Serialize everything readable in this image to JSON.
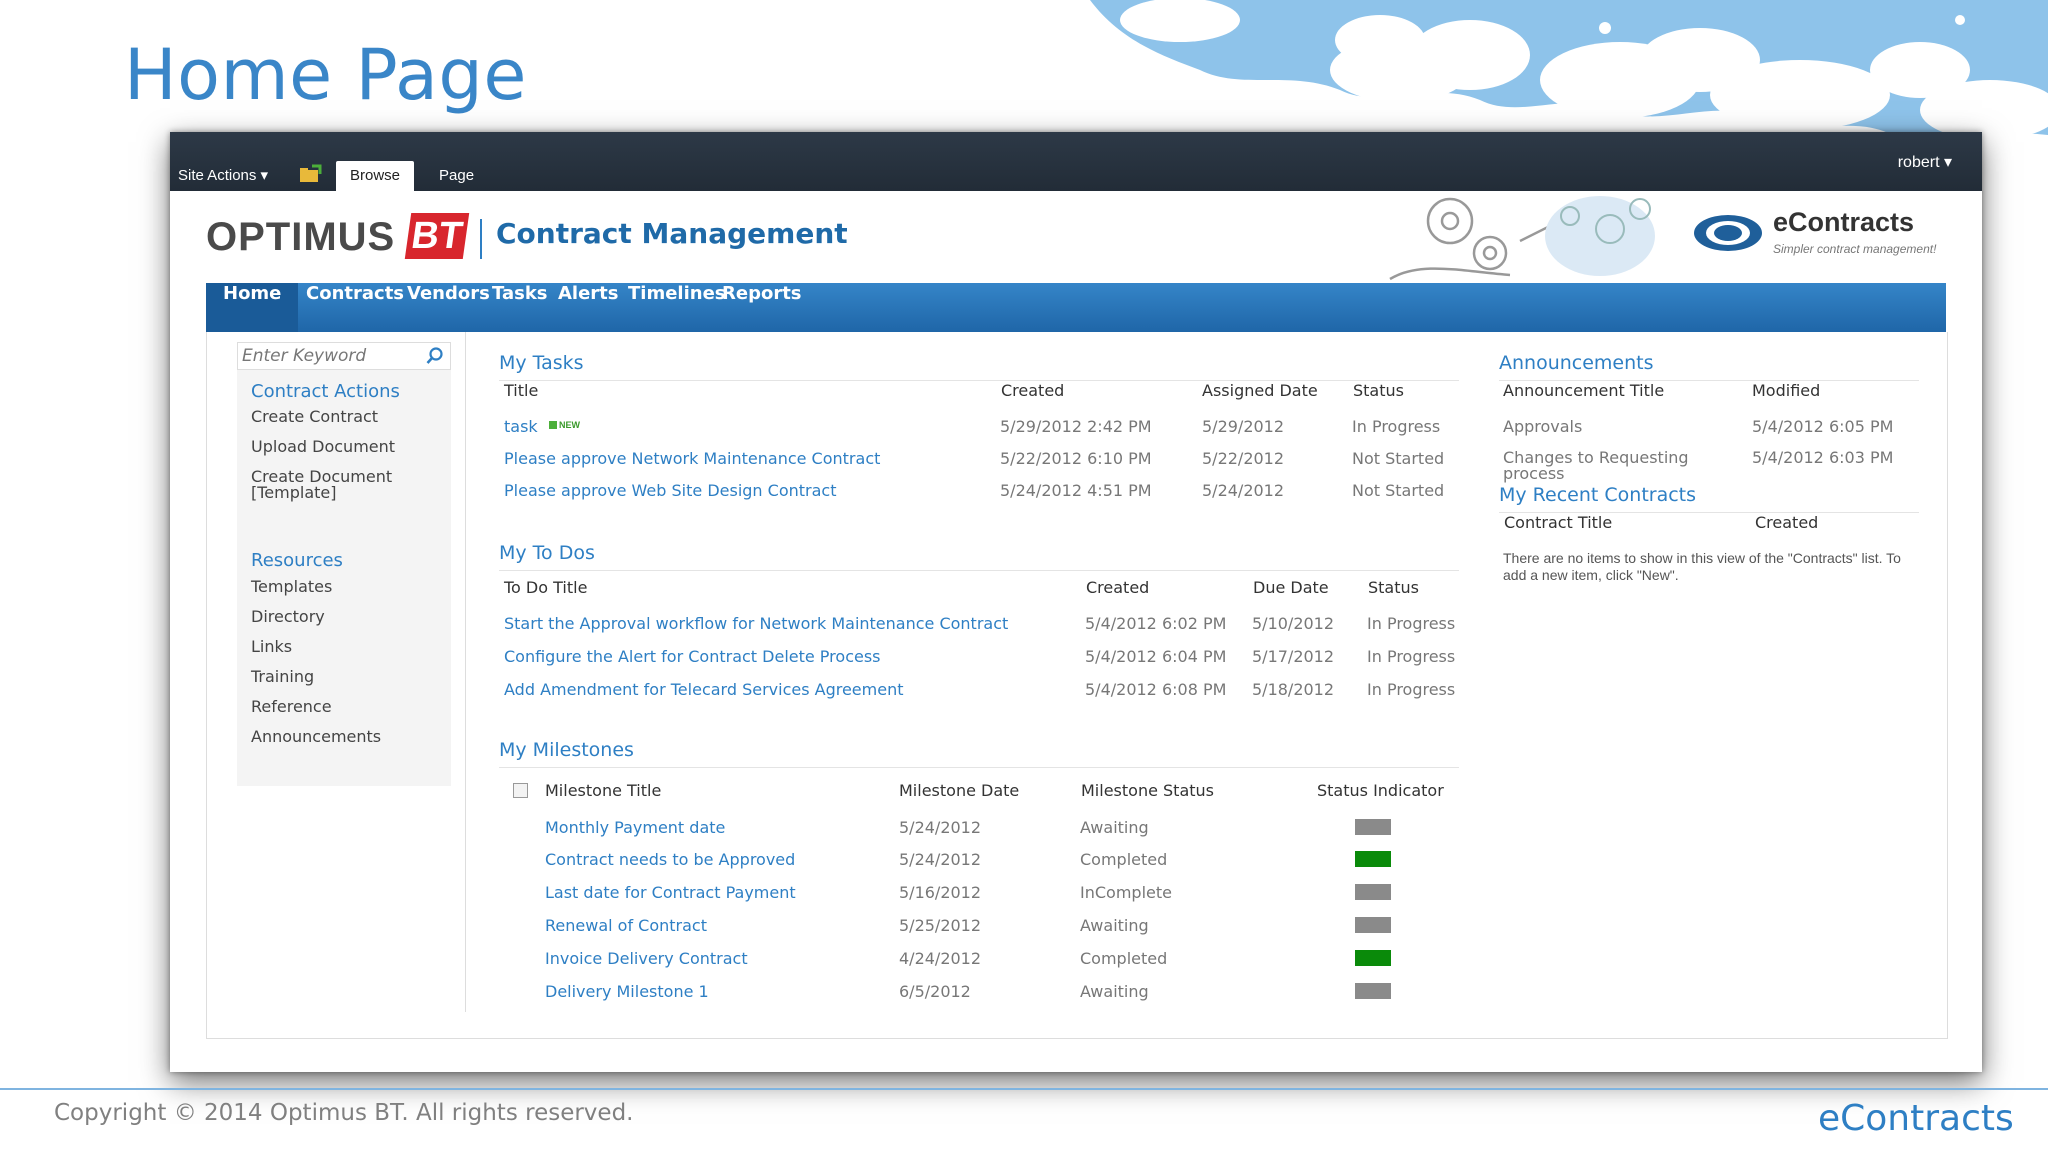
{
  "slide": {
    "title": "Home Page",
    "copyright": "Copyright © 2014 Optimus BT. All rights reserved.",
    "footer_logo": "eContracts"
  },
  "ribbon": {
    "site_actions": "Site Actions ▾",
    "tabs": [
      "Browse",
      "Page"
    ],
    "user": "robert ▾"
  },
  "brand": {
    "optimus": "OPTIMUS",
    "bt": "BT",
    "site_name": "Contract Management",
    "econtracts": "eContracts",
    "tagline": "Simpler contract management!"
  },
  "topnav": [
    "Home",
    "Contracts",
    "Vendors",
    "Tasks",
    "Alerts",
    "Timelines",
    "Reports"
  ],
  "leftnav": {
    "search_placeholder": "Enter Keyword",
    "contract_actions": {
      "heading": "Contract Actions",
      "items": [
        "Create Contract",
        "Upload Document",
        "Create Document",
        "[Template]"
      ]
    },
    "resources": {
      "heading": "Resources",
      "items": [
        "Templates",
        "Directory",
        "Links",
        "Training",
        "Reference",
        "Announcements"
      ]
    }
  },
  "my_tasks": {
    "title": "My Tasks",
    "headers": [
      "Title",
      "Created",
      "Assigned Date",
      "Status"
    ],
    "new_badge": "NEW",
    "rows": [
      {
        "title": "task",
        "created": "5/29/2012 2:42 PM",
        "assigned": "5/29/2012",
        "status": "In Progress"
      },
      {
        "title": "Please approve Network Maintenance Contract",
        "created": "5/22/2012 6:10 PM",
        "assigned": "5/22/2012",
        "status": "Not Started"
      },
      {
        "title": "Please approve Web Site Design Contract",
        "created": "5/24/2012 4:51 PM",
        "assigned": "5/24/2012",
        "status": "Not Started"
      }
    ]
  },
  "my_todos": {
    "title": "My To Dos",
    "headers": [
      "To Do Title",
      "Created",
      "Due Date",
      "Status"
    ],
    "rows": [
      {
        "title": "Start the Approval workflow for Network Maintenance Contract",
        "created": "5/4/2012 6:02 PM",
        "due": "5/10/2012",
        "status": "In Progress"
      },
      {
        "title": "Configure the Alert for Contract Delete Process",
        "created": "5/4/2012 6:04 PM",
        "due": "5/17/2012",
        "status": "In Progress"
      },
      {
        "title": "Add Amendment for Telecard Services Agreement",
        "created": "5/4/2012 6:08 PM",
        "due": "5/18/2012",
        "status": "In Progress"
      }
    ]
  },
  "my_milestones": {
    "title": "My Milestones",
    "headers": [
      "Milestone Title",
      "Milestone Date",
      "Milestone Status",
      "Status Indicator"
    ],
    "rows": [
      {
        "title": "Monthly Payment date",
        "date": "5/24/2012",
        "status": "Awaiting",
        "color": "#8a8a8a"
      },
      {
        "title": "Contract needs to be Approved",
        "date": "5/24/2012",
        "status": "Completed",
        "color": "#0a8a0a"
      },
      {
        "title": "Last date for Contract Payment",
        "date": "5/16/2012",
        "status": "InComplete",
        "color": "#8a8a8a"
      },
      {
        "title": "Renewal of Contract",
        "date": "5/25/2012",
        "status": "Awaiting",
        "color": "#8a8a8a"
      },
      {
        "title": "Invoice Delivery Contract",
        "date": "4/24/2012",
        "status": "Completed",
        "color": "#0a8a0a"
      },
      {
        "title": "Delivery Milestone 1",
        "date": "6/5/2012",
        "status": "Awaiting",
        "color": "#8a8a8a"
      }
    ]
  },
  "announcements": {
    "title": "Announcements",
    "headers": [
      "Announcement Title",
      "Modified"
    ],
    "rows": [
      {
        "title": "Approvals",
        "modified": "5/4/2012 6:05 PM"
      },
      {
        "title": "Changes to Requesting",
        "title2": "process",
        "modified": "5/4/2012 6:03 PM"
      }
    ]
  },
  "recent_contracts": {
    "title": "My Recent Contracts",
    "headers": [
      "Contract Title",
      "Created"
    ],
    "empty": "There are no items to show in this view of the \"Contracts\" list. To add a new item, click \"New\"."
  },
  "colors": {
    "accent": "#2e7fc4",
    "nav": "#1f66a8",
    "ribbon": "#27323e"
  }
}
